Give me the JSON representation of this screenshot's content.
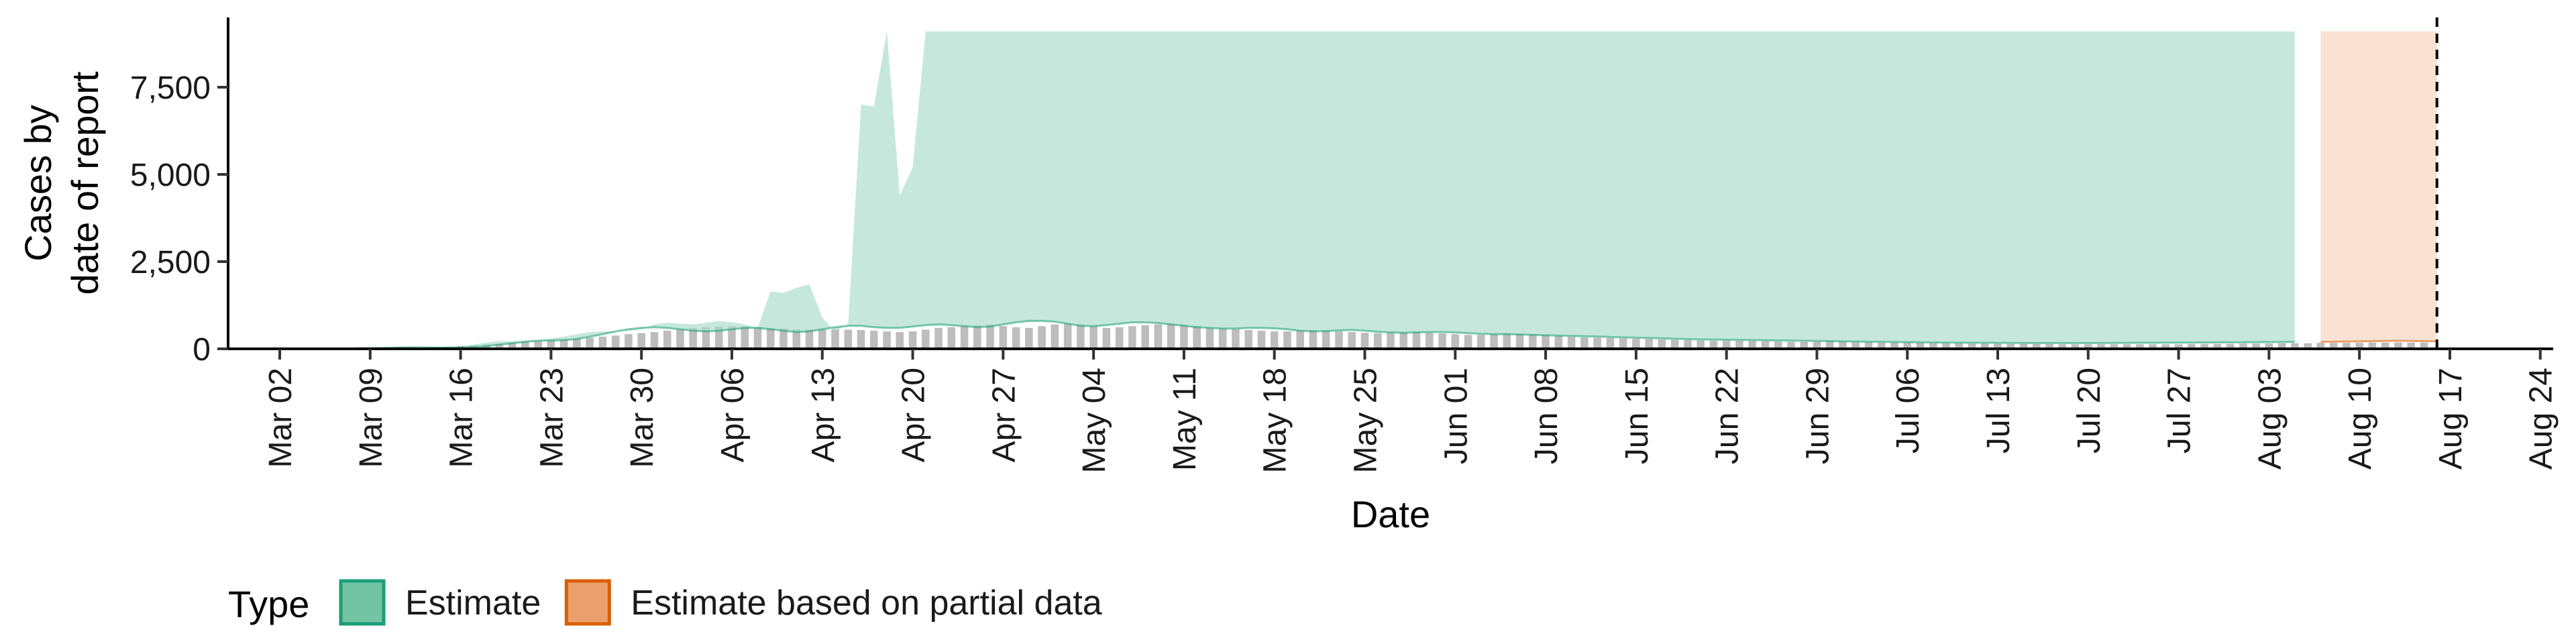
{
  "chart_data": {
    "type": "area",
    "xlabel": "Date",
    "ylabel_lines": [
      "Cases by",
      "date of report"
    ],
    "ylim": [
      0,
      9500
    ],
    "x_range": [
      "2020-02-27",
      "2020-08-25"
    ],
    "y_ticks": [
      {
        "value": 0,
        "label": "0"
      },
      {
        "value": 2500,
        "label": "2,500"
      },
      {
        "value": 5000,
        "label": "5,000"
      },
      {
        "value": 7500,
        "label": "7,500"
      }
    ],
    "x_ticks": [
      {
        "date": "2020-03-02",
        "label": "Mar 02"
      },
      {
        "date": "2020-03-09",
        "label": "Mar 09"
      },
      {
        "date": "2020-03-16",
        "label": "Mar 16"
      },
      {
        "date": "2020-03-23",
        "label": "Mar 23"
      },
      {
        "date": "2020-03-30",
        "label": "Mar 30"
      },
      {
        "date": "2020-04-06",
        "label": "Apr 06"
      },
      {
        "date": "2020-04-13",
        "label": "Apr 13"
      },
      {
        "date": "2020-04-20",
        "label": "Apr 20"
      },
      {
        "date": "2020-04-27",
        "label": "Apr 27"
      },
      {
        "date": "2020-05-04",
        "label": "May 04"
      },
      {
        "date": "2020-05-11",
        "label": "May 11"
      },
      {
        "date": "2020-05-18",
        "label": "May 18"
      },
      {
        "date": "2020-05-25",
        "label": "May 25"
      },
      {
        "date": "2020-06-01",
        "label": "Jun 01"
      },
      {
        "date": "2020-06-08",
        "label": "Jun 08"
      },
      {
        "date": "2020-06-15",
        "label": "Jun 15"
      },
      {
        "date": "2020-06-22",
        "label": "Jun 22"
      },
      {
        "date": "2020-06-29",
        "label": "Jun 29"
      },
      {
        "date": "2020-07-06",
        "label": "Jul 06"
      },
      {
        "date": "2020-07-13",
        "label": "Jul 13"
      },
      {
        "date": "2020-07-20",
        "label": "Jul 20"
      },
      {
        "date": "2020-07-27",
        "label": "Jul 27"
      },
      {
        "date": "2020-08-03",
        "label": "Aug 03"
      },
      {
        "date": "2020-08-10",
        "label": "Aug 10"
      },
      {
        "date": "2020-08-17",
        "label": "Aug 17"
      },
      {
        "date": "2020-08-24",
        "label": "Aug 24"
      }
    ],
    "reference_line": {
      "date": "2020-08-16",
      "style": "dashed"
    },
    "reported_cases": {
      "start": "2020-03-08",
      "end": "2020-08-16",
      "values": [
        10,
        10,
        20,
        20,
        30,
        40,
        50,
        60,
        80,
        100,
        120,
        140,
        170,
        200,
        220,
        250,
        280,
        300,
        320,
        350,
        380,
        420,
        450,
        480,
        520,
        560,
        600,
        620,
        640,
        650,
        640,
        620,
        600,
        580,
        560,
        560,
        560,
        560,
        550,
        540,
        520,
        500,
        480,
        500,
        550,
        600,
        620,
        650,
        680,
        700,
        650,
        620,
        600,
        650,
        700,
        720,
        700,
        650,
        600,
        620,
        650,
        680,
        700,
        720,
        700,
        650,
        600,
        580,
        560,
        540,
        520,
        500,
        500,
        520,
        540,
        520,
        500,
        480,
        460,
        450,
        460,
        470,
        480,
        460,
        440,
        420,
        400,
        400,
        420,
        440,
        430,
        410,
        390,
        370,
        350,
        330,
        320,
        310,
        300,
        290,
        280,
        270,
        260,
        250,
        240,
        230,
        230,
        230,
        230,
        220,
        210,
        200,
        200,
        210,
        220,
        210,
        200,
        190,
        180,
        180,
        180,
        170,
        160,
        160,
        160,
        150,
        150,
        150,
        140,
        140,
        140,
        140,
        130,
        130,
        130,
        130,
        130,
        130,
        130,
        130,
        130,
        130,
        140,
        140,
        140,
        140,
        150,
        150,
        150,
        160,
        160,
        160,
        170,
        170,
        170,
        170,
        180,
        180,
        180,
        180,
        180
      ]
    },
    "series": [
      {
        "name": "Estimate",
        "color": "#1b9e77",
        "fill": "#a8dcc9",
        "lower_band": {
          "start": "2020-03-08",
          "end": "2020-08-05",
          "values": [
            20,
            20,
            25,
            35,
            40,
            40,
            35,
            35,
            40,
            50,
            80,
            120,
            160,
            200,
            230,
            240,
            250,
            280,
            350,
            420,
            500,
            560,
            600,
            620,
            600,
            560,
            520,
            500,
            520,
            560,
            600,
            600,
            560,
            520,
            480,
            500,
            560,
            620,
            660,
            660,
            620,
            600,
            600,
            640,
            680,
            700,
            680,
            650,
            620,
            640,
            700,
            760,
            800,
            800,
            780,
            720,
            660,
            650,
            680,
            720,
            760,
            760,
            740,
            700,
            660,
            620,
            600,
            580,
            580,
            600,
            600,
            590,
            560,
            520,
            500,
            510,
            530,
            540,
            520,
            490,
            470,
            460,
            470,
            480,
            480,
            470,
            450,
            430,
            420,
            420,
            410,
            400,
            390,
            380,
            370,
            360,
            350,
            340,
            330,
            320,
            310,
            300,
            290,
            280,
            270,
            265,
            260,
            255,
            250,
            245,
            240,
            235,
            230,
            225,
            220,
            215,
            210,
            205,
            200,
            195,
            190,
            185,
            180,
            178,
            176,
            174,
            172,
            170,
            168,
            166,
            165,
            165,
            165,
            165,
            165,
            166,
            168,
            170,
            172,
            174,
            176,
            178,
            180,
            182,
            184,
            186,
            188,
            190,
            192,
            194,
            196
          ]
        },
        "upper_band": {
          "start": "2020-03-08",
          "end": "2020-08-05",
          "values": [
            30,
            30,
            40,
            50,
            60,
            50,
            50,
            60,
            80,
            120,
            180,
            220,
            220,
            240,
            260,
            300,
            350,
            420,
            480,
            500,
            500,
            520,
            560,
            700,
            750,
            720,
            700,
            750,
            800,
            760,
            700,
            600,
            1650,
            1600,
            1750,
            1850,
            900,
            500,
            700,
            7000,
            6950,
            9100,
            4400,
            5200,
            9100,
            9100,
            9100,
            9100,
            9100,
            9100,
            9100,
            9100,
            9100,
            9100,
            9100,
            9100,
            9100,
            9100,
            9100,
            9100,
            9100,
            9100,
            9100,
            9100,
            9100,
            9100,
            9100,
            9100,
            9100,
            9100,
            9100,
            9100,
            9100,
            9100,
            9100,
            9100,
            9100,
            9100,
            9100,
            9100,
            9100,
            9100,
            9100,
            9100,
            9100,
            9100,
            9100,
            9100,
            9100,
            9100,
            9100,
            9100,
            9100,
            9100,
            9100,
            9100,
            9100,
            9100,
            9100,
            9100,
            9100,
            9100,
            9100,
            9100,
            9100,
            9100,
            9100,
            9100,
            9100,
            9100,
            9100,
            9100,
            9100,
            9100,
            9100,
            9100,
            9100,
            9100,
            9100,
            9100,
            9100,
            9100,
            9100,
            9100,
            9100,
            9100,
            9100,
            9100,
            9100,
            9100,
            9100,
            9100,
            9100,
            9100,
            9100,
            9100,
            9100,
            9100,
            9100,
            9100,
            9100,
            9100,
            9100,
            9100,
            9100,
            9100,
            9100,
            9100,
            9100,
            9100,
            9100
          ]
        }
      },
      {
        "name": "Estimate based on partial data",
        "color": "#d95f02",
        "fill": "#f6d3bc",
        "lower_band": {
          "start": "2020-08-07",
          "end": "2020-08-16",
          "values": [
            200,
            205,
            210,
            215,
            220,
            225,
            230,
            225,
            220,
            215
          ]
        },
        "upper_band": {
          "start": "2020-08-07",
          "end": "2020-08-16",
          "values": [
            9100,
            9100,
            9100,
            9100,
            9100,
            9100,
            9100,
            9100,
            9100,
            9100
          ]
        }
      }
    ],
    "legend": {
      "title": "Type",
      "position": "bottom-left",
      "entries": [
        {
          "label": "Estimate",
          "fill": "#74c3a5",
          "stroke": "#1b9e77"
        },
        {
          "label": "Estimate based on partial data",
          "fill": "#eaa06c",
          "stroke": "#d95f02"
        }
      ]
    },
    "grid": false
  }
}
